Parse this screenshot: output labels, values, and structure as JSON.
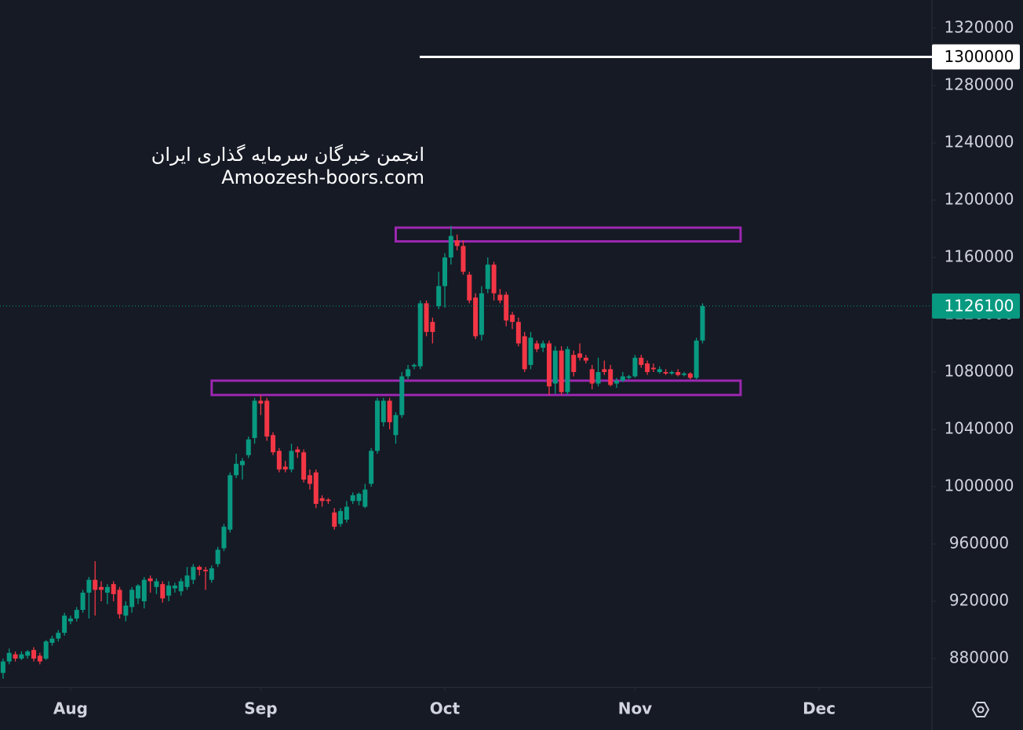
{
  "chart_data": {
    "type": "candlestick",
    "xlim": [
      -11.5,
      140.4
    ],
    "ylim": [
      860300,
      1339700
    ],
    "xticks": [
      {
        "value": 0,
        "label": "Aug"
      },
      {
        "value": 31,
        "label": "Sep"
      },
      {
        "value": 61,
        "label": "Oct"
      },
      {
        "value": 92,
        "label": "Nov"
      },
      {
        "value": 122,
        "label": "Dec"
      }
    ],
    "yticks": [
      880000,
      920000,
      960000,
      1000000,
      1040000,
      1080000,
      1120000,
      1160000,
      1200000,
      1240000,
      1280000,
      1320000
    ],
    "up_color": "#089981",
    "down_color": "#f23645",
    "x": [
      -11,
      -10,
      -9,
      -8,
      -7,
      -6,
      -5,
      -4,
      -3,
      -2,
      -1,
      0,
      1,
      2,
      3,
      4,
      5,
      6,
      7,
      8,
      9,
      10,
      11,
      12,
      13,
      14,
      15,
      16,
      17,
      18,
      19,
      20,
      21,
      22,
      23,
      24,
      25,
      26,
      27,
      28,
      29,
      30,
      31,
      32,
      33,
      34,
      35,
      36,
      37,
      38,
      39,
      40,
      41,
      42,
      43,
      44,
      45,
      46,
      47,
      48,
      49,
      50,
      51,
      52,
      53,
      54,
      55,
      56,
      57,
      58,
      59,
      60,
      61,
      62,
      63,
      64,
      65,
      66,
      67,
      68,
      69,
      70,
      71,
      72,
      73,
      74,
      75,
      76,
      77,
      78,
      79,
      80,
      81,
      82,
      83,
      84,
      85,
      86,
      87,
      88,
      89,
      90,
      91,
      92,
      93,
      94,
      95,
      96,
      97,
      98,
      99,
      100,
      101,
      102,
      103
    ],
    "open": [
      870000,
      878000,
      883000,
      880000,
      882000,
      886000,
      882000,
      880000,
      891000,
      894000,
      898000,
      906000,
      908000,
      914000,
      926000,
      935000,
      930000,
      926000,
      932000,
      928000,
      910000,
      916000,
      922000,
      920000,
      936000,
      930000,
      932000,
      924000,
      929000,
      927000,
      930000,
      935000,
      944000,
      942000,
      935000,
      946000,
      957000,
      970000,
      1008000,
      1015000,
      1022000,
      1034000,
      1060000,
      1060000,
      1036000,
      1025000,
      1014000,
      1012000,
      1026000,
      1024000,
      1008000,
      1010000,
      992000,
      991000,
      982000,
      974000,
      977000,
      990000,
      990000,
      986000,
      1002000,
      1025000,
      1045000,
      1060000,
      1036000,
      1050000,
      1077000,
      1084000,
      1084000,
      1128000,
      1115000,
      1126000,
      1140000,
      1160000,
      1172000,
      1168000,
      1148000,
      1132000,
      1106000,
      1138000,
      1155000,
      1134000,
      1134000,
      1120000,
      1115000,
      1105000,
      1085000,
      1100000,
      1097000,
      1100000,
      1072000,
      1095000,
      1066000,
      1092000,
      1093000,
      1090000,
      1082000,
      1072000,
      1082000,
      1082000,
      1072000,
      1074000,
      1076000,
      1077000,
      1090000,
      1086000,
      1083000,
      1080000,
      1080000,
      1079000,
      1080000,
      1078000,
      1079000,
      1076000,
      1102000
    ],
    "high": [
      880000,
      887000,
      885000,
      885000,
      886000,
      888000,
      884000,
      893000,
      896000,
      900000,
      912000,
      910000,
      916000,
      928000,
      937000,
      948000,
      934000,
      932000,
      934000,
      930000,
      920000,
      930000,
      932000,
      937000,
      938000,
      936000,
      934000,
      934000,
      933000,
      936000,
      944000,
      946000,
      945000,
      944000,
      945000,
      958000,
      974000,
      1010000,
      1023000,
      1020000,
      1035000,
      1062000,
      1064000,
      1062000,
      1038000,
      1027000,
      1018000,
      1030000,
      1028000,
      1026000,
      1012000,
      1012000,
      994000,
      992000,
      985000,
      985000,
      990000,
      996000,
      996000,
      1002000,
      1027000,
      1062000,
      1062000,
      1062000,
      1052000,
      1080000,
      1085000,
      1086000,
      1130000,
      1130000,
      1118000,
      1150000,
      1163000,
      1182000,
      1176000,
      1172000,
      1150000,
      1135000,
      1140000,
      1160000,
      1157000,
      1138000,
      1136000,
      1122000,
      1118000,
      1108000,
      1108000,
      1102000,
      1102000,
      1102000,
      1098000,
      1098000,
      1098000,
      1095000,
      1100000,
      1092000,
      1085000,
      1090000,
      1088000,
      1085000,
      1076000,
      1080000,
      1078000,
      1092000,
      1092000,
      1088000,
      1086000,
      1084000,
      1082000,
      1081000,
      1082000,
      1080000,
      1080000,
      1104000,
      1128000
    ],
    "low": [
      866000,
      876000,
      878000,
      879000,
      880000,
      878000,
      876000,
      879000,
      889000,
      892000,
      896000,
      904000,
      906000,
      912000,
      908000,
      910000,
      920000,
      918000,
      920000,
      908000,
      906000,
      912000,
      918000,
      915000,
      926000,
      925000,
      919000,
      920000,
      926000,
      924000,
      928000,
      932000,
      938000,
      928000,
      933000,
      944000,
      955000,
      968000,
      1006000,
      1005000,
      1020000,
      1030000,
      1050000,
      1032000,
      1022000,
      1010000,
      1010000,
      1010000,
      1020000,
      1003000,
      998000,
      985000,
      986000,
      988000,
      970000,
      972000,
      975000,
      988000,
      987000,
      985000,
      1000000,
      1023000,
      1042000,
      1040000,
      1030000,
      1048000,
      1075000,
      1082000,
      1082000,
      1105000,
      1100000,
      1124000,
      1125000,
      1155000,
      1165000,
      1148000,
      1128000,
      1103000,
      1102000,
      1135000,
      1130000,
      1128000,
      1112000,
      1110000,
      1098000,
      1080000,
      1082000,
      1094000,
      1094000,
      1064000,
      1065000,
      1064000,
      1064000,
      1077000,
      1088000,
      1086000,
      1068000,
      1070000,
      1078000,
      1070000,
      1069000,
      1073000,
      1075000,
      1076000,
      1083000,
      1078000,
      1080000,
      1079000,
      1078000,
      1078000,
      1077000,
      1077000,
      1075000,
      1075000,
      1100000
    ],
    "close": [
      878000,
      884000,
      880000,
      883000,
      885000,
      880000,
      878000,
      892000,
      894000,
      898000,
      910000,
      908000,
      914000,
      926000,
      935000,
      928000,
      928000,
      930000,
      925000,
      911000,
      917000,
      928000,
      931000,
      935000,
      934000,
      934000,
      922000,
      931000,
      931000,
      934000,
      938000,
      944000,
      942000,
      941000,
      943000,
      956000,
      972000,
      1008000,
      1016000,
      1018000,
      1033000,
      1060000,
      1058000,
      1035000,
      1024000,
      1012000,
      1012000,
      1025000,
      1024000,
      1005000,
      1002000,
      988000,
      990000,
      990000,
      972000,
      983000,
      986000,
      994000,
      995000,
      998000,
      1025000,
      1060000,
      1060000,
      1045000,
      1050000,
      1077000,
      1082000,
      1085000,
      1128000,
      1108000,
      1108000,
      1140000,
      1160000,
      1175000,
      1168000,
      1150000,
      1130000,
      1105000,
      1135000,
      1155000,
      1135000,
      1130000,
      1116000,
      1115000,
      1100000,
      1082000,
      1104000,
      1096000,
      1100000,
      1070000,
      1095000,
      1066000,
      1096000,
      1080000,
      1090000,
      1088000,
      1072000,
      1080000,
      1080000,
      1071000,
      1074000,
      1077000,
      1077000,
      1090000,
      1085000,
      1080000,
      1082000,
      1082000,
      1079000,
      1080000,
      1078000,
      1079000,
      1076000,
      1102000,
      1126100
    ],
    "last_price": 1126100,
    "hline": 1300000,
    "zones": [
      {
        "x": [
          53,
          109.2
        ],
        "y": [
          1171200,
          1180800
        ],
        "color": "#9c27b0"
      },
      {
        "x": [
          23,
          109.2
        ],
        "y": [
          1064000,
          1074000
        ],
        "color": "#9c27b0"
      }
    ]
  },
  "watermark": {
    "line1": "انجمن خبرگان سرمایه گذاری ایران",
    "line2": "Amoozesh-boors.com"
  }
}
